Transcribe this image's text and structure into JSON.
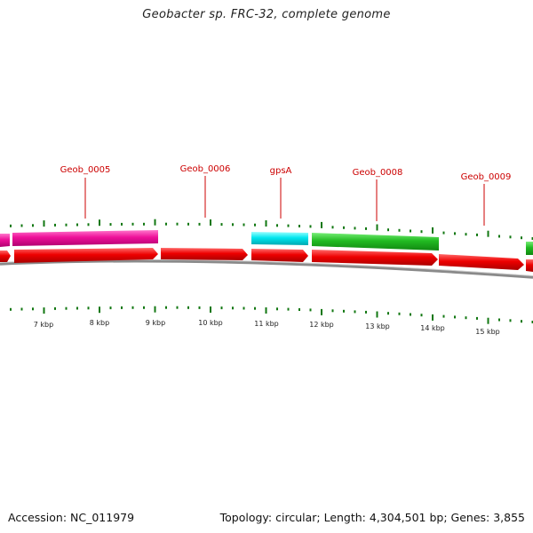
{
  "title": "Geobacter sp. FRC-32, complete genome",
  "footer": {
    "accession": "Accession: NC_011979",
    "stats": "Topology: circular; Length: 4,304,501 bp; Genes: 3,855"
  },
  "colors": {
    "cds": "#ee0000",
    "gene_magenta": "#ee1199",
    "gene_cyan": "#00e5ee",
    "gene_green": "#22bb22",
    "tick": "#117711",
    "label": "#cc0000",
    "backbone": "#888888"
  },
  "gene_labels": [
    {
      "id": "geob-0005",
      "text": "Geob_0005"
    },
    {
      "id": "geob-0006",
      "text": "Geob_0006"
    },
    {
      "id": "gpsa",
      "text": "gpsA"
    },
    {
      "id": "geob-0008",
      "text": "Geob_0008"
    },
    {
      "id": "geob-0009",
      "text": "Geob_0009"
    }
  ],
  "scale_labels": [
    "7 kbp",
    "8 kbp",
    "9 kbp",
    "10 kbp",
    "11 kbp",
    "12 kbp",
    "13 kbp",
    "14 kbp",
    "15 kbp"
  ]
}
